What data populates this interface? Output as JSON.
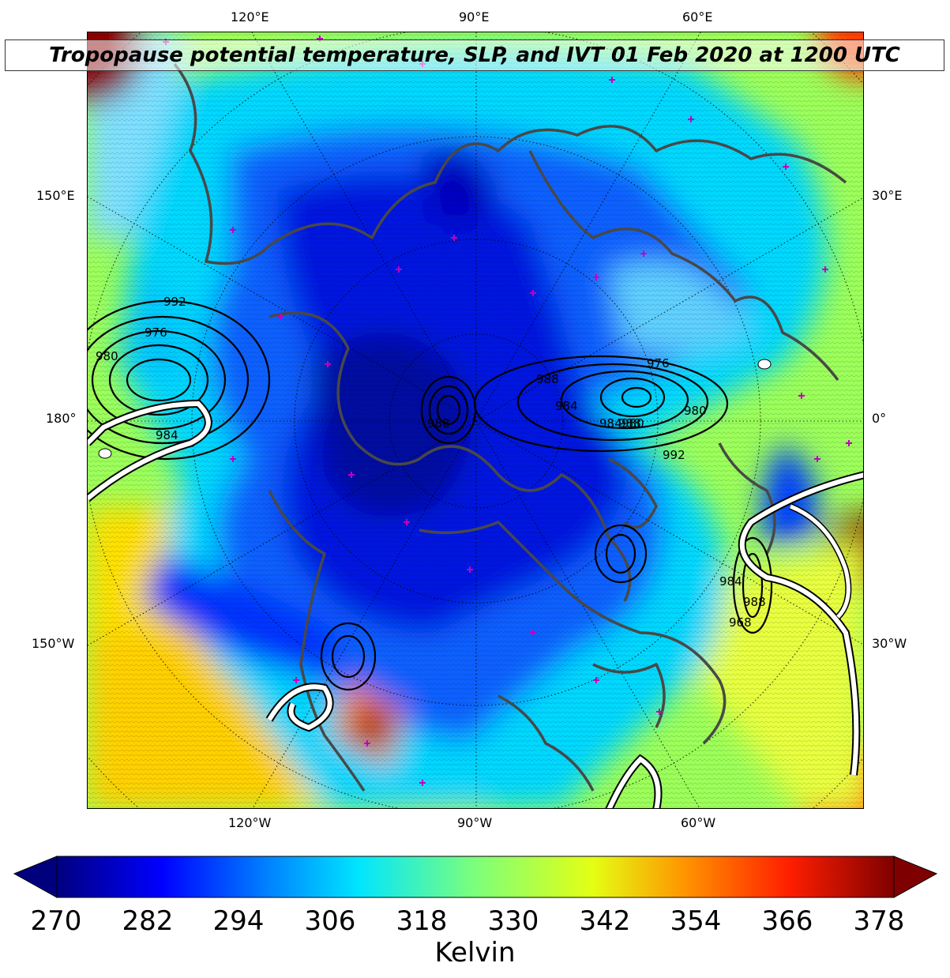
{
  "title": "Tropopause potential temperature, SLP, and IVT 01 Feb 2020 at 1200 UTC",
  "axes": {
    "top": [
      "120°E",
      "90°E",
      "60°E"
    ],
    "left": [
      "150°E",
      "180°",
      "150°W"
    ],
    "right": [
      "30°E",
      "0°",
      "30°W"
    ],
    "bottom": [
      "120°W",
      "90°W",
      "60°W"
    ]
  },
  "slp_contour_labels": [
    "992",
    "976",
    "980",
    "984",
    "988",
    "976",
    "988",
    "984",
    "980",
    "992",
    "988",
    "984",
    "980",
    "968",
    "984",
    "988"
  ],
  "colorbar": {
    "ticks": [
      "270",
      "282",
      "294",
      "306",
      "318",
      "330",
      "342",
      "354",
      "366",
      "378"
    ],
    "units": "Kelvin",
    "min": 270,
    "max": 381,
    "colors": [
      "#00007f",
      "#0000ff",
      "#0080ff",
      "#00e5ff",
      "#7dff7a",
      "#e4ff13",
      "#ff9400",
      "#ff1e00",
      "#7f0000"
    ]
  }
}
